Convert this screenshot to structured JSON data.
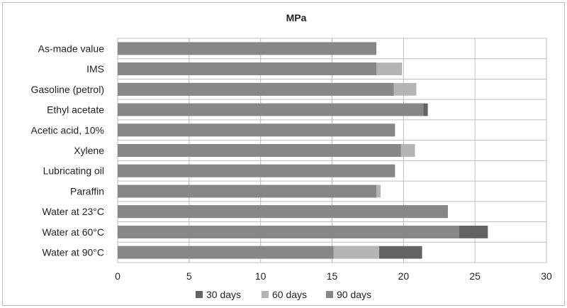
{
  "chart_data": {
    "type": "bar",
    "orientation": "horizontal",
    "stacked": false,
    "title": "MPa",
    "xlabel": "",
    "ylabel": "",
    "xlim": [
      0,
      30
    ],
    "xticks": [
      0,
      5,
      10,
      15,
      20,
      25,
      30
    ],
    "grid": "vertical",
    "legend_position": "bottom",
    "categories": [
      "As-made value",
      "IMS",
      "Gasoline (petrol)",
      "Ethyl acetate",
      "Acetic acid, 10%",
      "Xylene",
      "Lubricating oil",
      "Paraffin",
      "Water at 23°C",
      "Water at 60°C",
      "Water at 90°C"
    ],
    "series": [
      {
        "name": "30 days",
        "color": "#636363",
        "values": [
          18.1,
          18.1,
          19.3,
          21.7,
          19.4,
          19.8,
          19.4,
          18.1,
          23.1,
          25.9,
          21.3
        ]
      },
      {
        "name": "60 days",
        "color": "#b4b4b4",
        "values": [
          18.1,
          19.9,
          20.9,
          21.4,
          19.4,
          20.8,
          19.4,
          18.4,
          23.1,
          23.9,
          18.3
        ]
      },
      {
        "name": "90 days",
        "color": "#878787",
        "values": [
          18.1,
          18.1,
          19.3,
          21.4,
          19.4,
          19.8,
          19.4,
          18.1,
          23.1,
          23.9,
          15.1
        ]
      }
    ]
  }
}
